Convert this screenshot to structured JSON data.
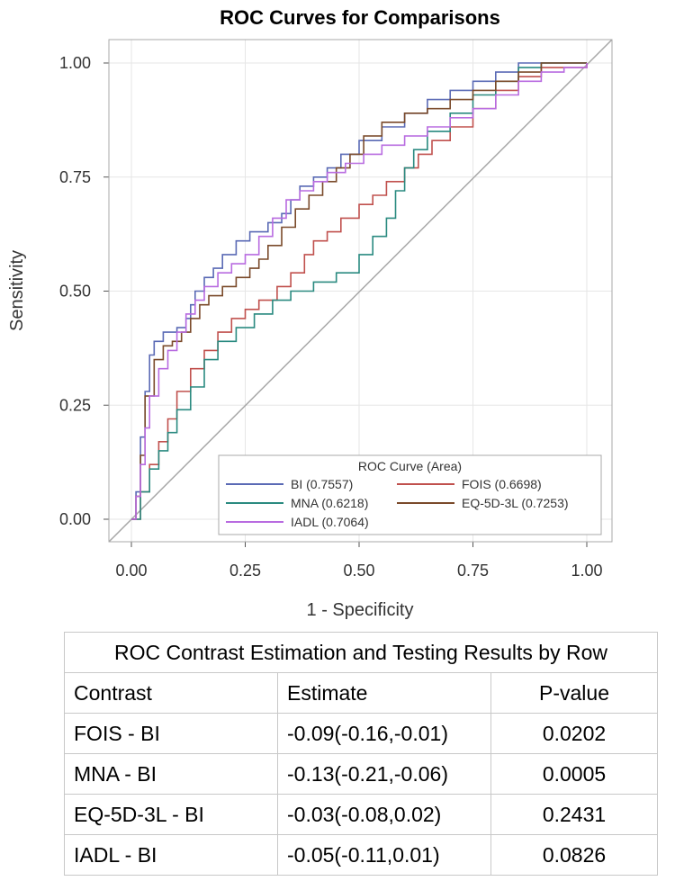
{
  "chart_data": {
    "type": "line",
    "title": "ROC Curves for Comparisons",
    "xlabel": "1 - Specificity",
    "ylabel": "Sensitivity",
    "xlim": [
      0,
      1
    ],
    "ylim": [
      0,
      1
    ],
    "xticks": [
      "0.00",
      "0.25",
      "0.50",
      "0.75",
      "1.00"
    ],
    "yticks": [
      "0.00",
      "0.25",
      "0.50",
      "0.75",
      "1.00"
    ],
    "grid": true,
    "legend_title": "ROC Curve (Area)",
    "legend_position": "bottom-right",
    "series": [
      {
        "name": "BI",
        "area": "(0.7557)",
        "color": "#5a6ab5",
        "points": [
          [
            0,
            0
          ],
          [
            0.01,
            0.06
          ],
          [
            0.02,
            0.18
          ],
          [
            0.03,
            0.28
          ],
          [
            0.04,
            0.36
          ],
          [
            0.05,
            0.39
          ],
          [
            0.07,
            0.41
          ],
          [
            0.1,
            0.42
          ],
          [
            0.12,
            0.44
          ],
          [
            0.13,
            0.47
          ],
          [
            0.14,
            0.5
          ],
          [
            0.16,
            0.53
          ],
          [
            0.18,
            0.55
          ],
          [
            0.2,
            0.58
          ],
          [
            0.23,
            0.61
          ],
          [
            0.26,
            0.63
          ],
          [
            0.3,
            0.65
          ],
          [
            0.33,
            0.67
          ],
          [
            0.35,
            0.7
          ],
          [
            0.37,
            0.73
          ],
          [
            0.4,
            0.75
          ],
          [
            0.43,
            0.77
          ],
          [
            0.46,
            0.8
          ],
          [
            0.5,
            0.83
          ],
          [
            0.55,
            0.86
          ],
          [
            0.6,
            0.89
          ],
          [
            0.65,
            0.92
          ],
          [
            0.7,
            0.94
          ],
          [
            0.75,
            0.96
          ],
          [
            0.8,
            0.98
          ],
          [
            0.85,
            1.0
          ],
          [
            1.0,
            1.0
          ]
        ]
      },
      {
        "name": "FOIS",
        "area": "(0.6698)",
        "color": "#c0504d",
        "points": [
          [
            0,
            0
          ],
          [
            0.02,
            0.06
          ],
          [
            0.04,
            0.12
          ],
          [
            0.06,
            0.17
          ],
          [
            0.08,
            0.22
          ],
          [
            0.1,
            0.28
          ],
          [
            0.13,
            0.33
          ],
          [
            0.16,
            0.37
          ],
          [
            0.19,
            0.41
          ],
          [
            0.22,
            0.44
          ],
          [
            0.25,
            0.46
          ],
          [
            0.28,
            0.48
          ],
          [
            0.32,
            0.51
          ],
          [
            0.35,
            0.54
          ],
          [
            0.38,
            0.58
          ],
          [
            0.4,
            0.61
          ],
          [
            0.43,
            0.63
          ],
          [
            0.46,
            0.66
          ],
          [
            0.5,
            0.69
          ],
          [
            0.53,
            0.71
          ],
          [
            0.56,
            0.74
          ],
          [
            0.6,
            0.77
          ],
          [
            0.63,
            0.8
          ],
          [
            0.66,
            0.83
          ],
          [
            0.7,
            0.86
          ],
          [
            0.75,
            0.9
          ],
          [
            0.8,
            0.94
          ],
          [
            0.85,
            0.97
          ],
          [
            0.9,
            0.99
          ],
          [
            1.0,
            1.0
          ]
        ]
      },
      {
        "name": "MNA",
        "area": "(0.6218)",
        "color": "#2a8a80",
        "points": [
          [
            0,
            0
          ],
          [
            0.02,
            0.06
          ],
          [
            0.04,
            0.11
          ],
          [
            0.06,
            0.15
          ],
          [
            0.08,
            0.19
          ],
          [
            0.1,
            0.24
          ],
          [
            0.13,
            0.29
          ],
          [
            0.16,
            0.35
          ],
          [
            0.19,
            0.39
          ],
          [
            0.23,
            0.42
          ],
          [
            0.27,
            0.45
          ],
          [
            0.31,
            0.48
          ],
          [
            0.35,
            0.5
          ],
          [
            0.4,
            0.52
          ],
          [
            0.45,
            0.54
          ],
          [
            0.5,
            0.58
          ],
          [
            0.53,
            0.62
          ],
          [
            0.56,
            0.66
          ],
          [
            0.58,
            0.72
          ],
          [
            0.6,
            0.77
          ],
          [
            0.62,
            0.81
          ],
          [
            0.65,
            0.85
          ],
          [
            0.7,
            0.89
          ],
          [
            0.75,
            0.93
          ],
          [
            0.8,
            0.96
          ],
          [
            0.85,
            0.99
          ],
          [
            0.9,
            1.0
          ],
          [
            1.0,
            1.0
          ]
        ]
      },
      {
        "name": "EQ-5D-3L",
        "area": "(0.7253)",
        "color": "#7a4a2a",
        "points": [
          [
            0,
            0
          ],
          [
            0.01,
            0.05
          ],
          [
            0.02,
            0.14
          ],
          [
            0.03,
            0.27
          ],
          [
            0.05,
            0.35
          ],
          [
            0.07,
            0.38
          ],
          [
            0.09,
            0.39
          ],
          [
            0.11,
            0.41
          ],
          [
            0.13,
            0.44
          ],
          [
            0.15,
            0.47
          ],
          [
            0.17,
            0.49
          ],
          [
            0.2,
            0.51
          ],
          [
            0.23,
            0.53
          ],
          [
            0.26,
            0.55
          ],
          [
            0.28,
            0.57
          ],
          [
            0.3,
            0.6
          ],
          [
            0.33,
            0.64
          ],
          [
            0.36,
            0.68
          ],
          [
            0.39,
            0.71
          ],
          [
            0.42,
            0.74
          ],
          [
            0.45,
            0.77
          ],
          [
            0.48,
            0.8
          ],
          [
            0.51,
            0.84
          ],
          [
            0.55,
            0.87
          ],
          [
            0.6,
            0.89
          ],
          [
            0.65,
            0.9
          ],
          [
            0.7,
            0.92
          ],
          [
            0.75,
            0.94
          ],
          [
            0.8,
            0.96
          ],
          [
            0.85,
            0.98
          ],
          [
            0.9,
            1.0
          ],
          [
            1.0,
            1.0
          ]
        ]
      },
      {
        "name": "IADL",
        "area": "(0.7064)",
        "color": "#b86be0",
        "points": [
          [
            0,
            0
          ],
          [
            0.01,
            0.05
          ],
          [
            0.02,
            0.12
          ],
          [
            0.03,
            0.2
          ],
          [
            0.04,
            0.27
          ],
          [
            0.06,
            0.33
          ],
          [
            0.08,
            0.37
          ],
          [
            0.1,
            0.41
          ],
          [
            0.12,
            0.45
          ],
          [
            0.14,
            0.48
          ],
          [
            0.16,
            0.51
          ],
          [
            0.19,
            0.54
          ],
          [
            0.22,
            0.56
          ],
          [
            0.25,
            0.58
          ],
          [
            0.28,
            0.62
          ],
          [
            0.31,
            0.66
          ],
          [
            0.34,
            0.7
          ],
          [
            0.37,
            0.72
          ],
          [
            0.4,
            0.74
          ],
          [
            0.43,
            0.76
          ],
          [
            0.47,
            0.78
          ],
          [
            0.51,
            0.8
          ],
          [
            0.55,
            0.82
          ],
          [
            0.6,
            0.84
          ],
          [
            0.65,
            0.86
          ],
          [
            0.7,
            0.88
          ],
          [
            0.75,
            0.9
          ],
          [
            0.8,
            0.93
          ],
          [
            0.85,
            0.96
          ],
          [
            0.9,
            0.98
          ],
          [
            0.95,
            0.99
          ],
          [
            1.0,
            1.0
          ]
        ]
      }
    ]
  },
  "table": {
    "caption": "ROC Contrast Estimation and Testing Results by Row",
    "headers": {
      "contrast": "Contrast",
      "estimate": "Estimate",
      "p": "P-value"
    },
    "rows": [
      {
        "contrast": "FOIS - BI",
        "estimate": "-0.09(-0.16,-0.01)",
        "p": "0.0202"
      },
      {
        "contrast": "MNA - BI",
        "estimate": "-0.13(-0.21,-0.06)",
        "p": "0.0005"
      },
      {
        "contrast": "EQ-5D-3L - BI",
        "estimate": "-0.03(-0.08,0.02)",
        "p": "0.2431"
      },
      {
        "contrast": "IADL - BI",
        "estimate": "-0.05(-0.11,0.01)",
        "p": "0.0826"
      }
    ]
  }
}
